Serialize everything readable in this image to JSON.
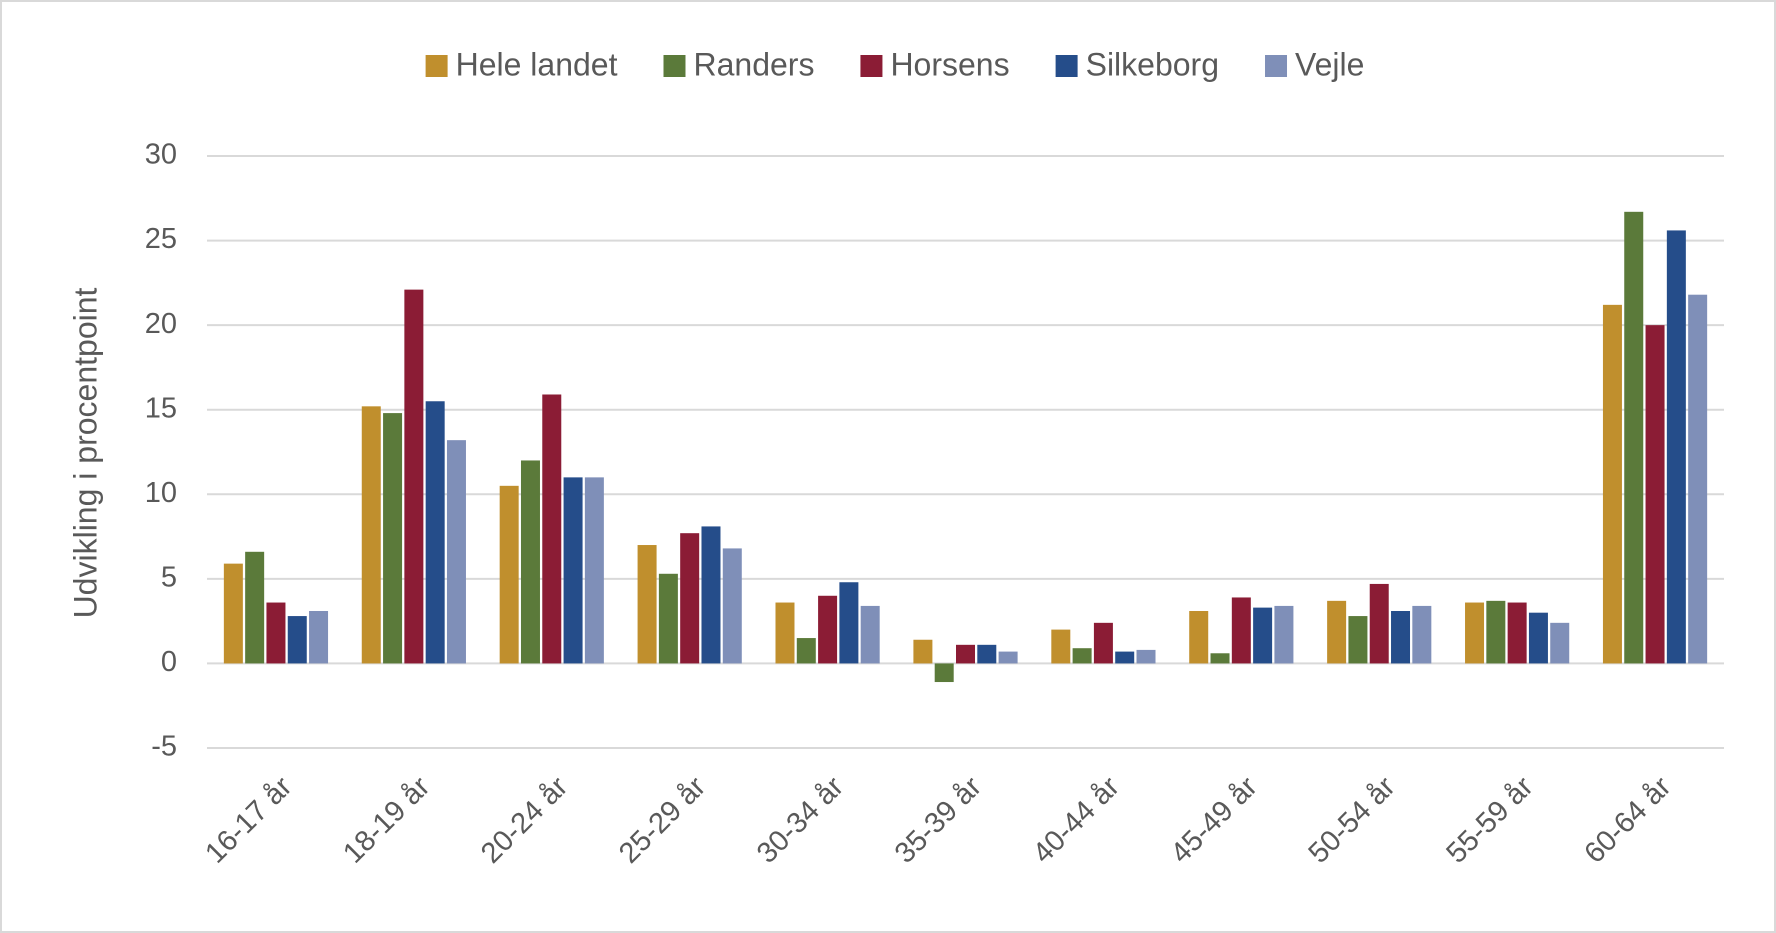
{
  "chart_data": {
    "type": "bar",
    "y_label": "Udvikling i procentpoint",
    "categories": [
      "16-17 år",
      "18-19 år",
      "20-24 år",
      "25-29 år",
      "30-34 år",
      "35-39 år",
      "40-44 år",
      "45-49 år",
      "50-54 år",
      "55-59 år",
      "60-64 år"
    ],
    "series": [
      {
        "name": "Hele landet",
        "color": "#c08f2d",
        "values": [
          5.9,
          15.2,
          10.5,
          7.0,
          3.6,
          1.4,
          2.0,
          3.1,
          3.7,
          3.6,
          21.2
        ]
      },
      {
        "name": "Randers",
        "color": "#5b7a3a",
        "values": [
          6.6,
          14.8,
          12.0,
          5.3,
          1.5,
          -1.1,
          0.9,
          0.6,
          2.8,
          3.7,
          26.7
        ]
      },
      {
        "name": "Horsens",
        "color": "#8b1c35",
        "values": [
          3.6,
          22.1,
          15.9,
          7.7,
          4.0,
          1.1,
          2.4,
          3.9,
          4.7,
          3.6,
          20.0
        ]
      },
      {
        "name": "Silkeborg",
        "color": "#254d8a",
        "values": [
          2.8,
          15.5,
          11.0,
          8.1,
          4.8,
          1.1,
          0.7,
          3.3,
          3.1,
          3.0,
          25.6
        ]
      },
      {
        "name": "Vejle",
        "color": "#7f8fb8",
        "values": [
          3.1,
          13.2,
          11.0,
          6.8,
          3.4,
          0.7,
          0.8,
          3.4,
          3.4,
          2.4,
          21.8
        ]
      }
    ],
    "ylim": [
      -5,
      30
    ],
    "yticks": [
      -5,
      0,
      5,
      10,
      15,
      20,
      25,
      30
    ],
    "grid": true,
    "legend": "top"
  }
}
